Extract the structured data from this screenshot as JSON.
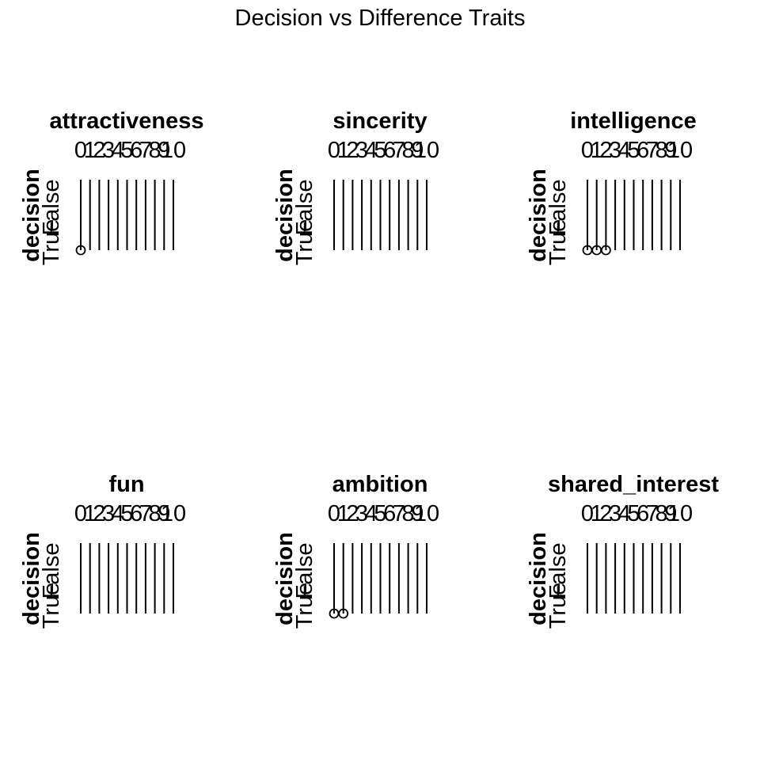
{
  "chart_data": {
    "type": "scatter",
    "title": "Decision vs Difference Traits",
    "x_ticks": [
      "0",
      "1",
      "2",
      "3",
      "4",
      "5",
      "6",
      "7",
      "8",
      "9",
      "10"
    ],
    "y_ticks": [
      "False",
      "True"
    ],
    "panels": [
      {
        "title": "attractiveness",
        "ylabel": "decision",
        "points": [
          {
            "x": 0,
            "y": "True"
          }
        ]
      },
      {
        "title": "sincerity",
        "ylabel": "decision",
        "points": []
      },
      {
        "title": "intelligence",
        "ylabel": "decision",
        "points": [
          {
            "x": 0,
            "y": "True"
          },
          {
            "x": 1,
            "y": "True"
          },
          {
            "x": 2,
            "y": "True"
          }
        ]
      },
      {
        "title": "fun",
        "ylabel": "decision",
        "points": []
      },
      {
        "title": "ambition",
        "ylabel": "decision",
        "points": [
          {
            "x": 0,
            "y": "True"
          },
          {
            "x": 1,
            "y": "True"
          }
        ]
      },
      {
        "title": "shared_interest",
        "ylabel": "decision",
        "points": []
      }
    ]
  }
}
